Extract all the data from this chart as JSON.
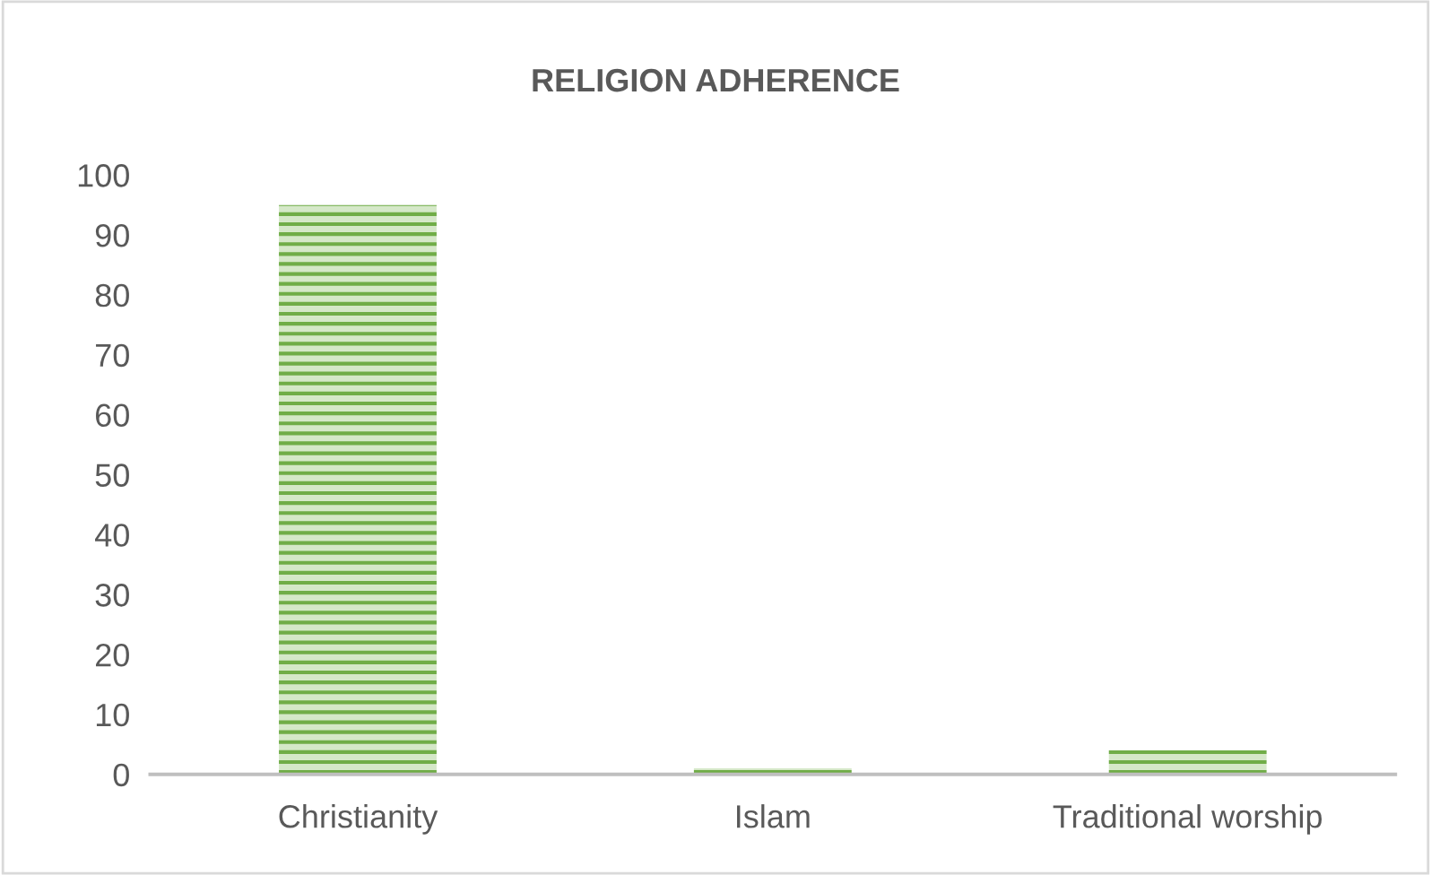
{
  "chart_data": {
    "type": "bar",
    "title": "RELIGION ADHERENCE",
    "categories": [
      "Christianity",
      "Islam",
      "Traditional worship"
    ],
    "values": [
      95,
      1,
      4
    ],
    "color": "#70ad47",
    "ylim": [
      0,
      100
    ],
    "yticks": [
      0,
      10,
      20,
      30,
      40,
      50,
      60,
      70,
      80,
      90,
      100
    ],
    "grid": false
  }
}
